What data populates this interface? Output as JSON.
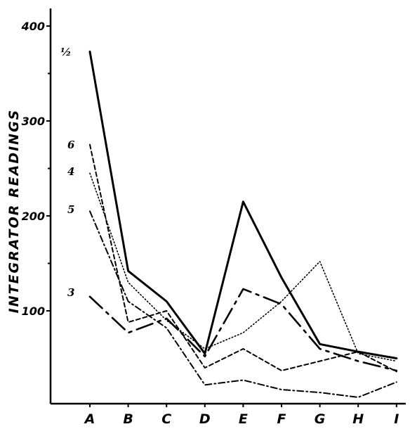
{
  "chart_data": {
    "type": "line",
    "title": "",
    "xlabel": "",
    "ylabel": "INTEGRATOR READINGS",
    "categories": [
      "A",
      "B",
      "C",
      "D",
      "E",
      "F",
      "G",
      "H",
      "I"
    ],
    "yticks": [
      100,
      200,
      300,
      400
    ],
    "ylim": [
      -100,
      420
    ],
    "grid": false,
    "series": [
      {
        "name": "1/2",
        "label": "½",
        "style": "solid",
        "values": [
          373,
          142,
          110,
          55,
          215,
          135,
          65,
          57,
          50
        ]
      },
      {
        "name": "6",
        "label": "6",
        "style": "dashed",
        "values": [
          275,
          88,
          100,
          40,
          60,
          37,
          47,
          57,
          36
        ]
      },
      {
        "name": "4",
        "label": "4",
        "style": "dotted",
        "values": [
          245,
          130,
          90,
          60,
          77,
          110,
          152,
          55,
          47
        ]
      },
      {
        "name": "5",
        "label": "5",
        "style": "dash-dot",
        "values": [
          205,
          110,
          82,
          22,
          27,
          17,
          14,
          9,
          25
        ]
      },
      {
        "name": "3",
        "label": "3",
        "style": "long-dash-dot",
        "values": [
          115,
          77,
          92,
          52,
          123,
          107,
          60,
          47,
          37
        ]
      }
    ]
  }
}
